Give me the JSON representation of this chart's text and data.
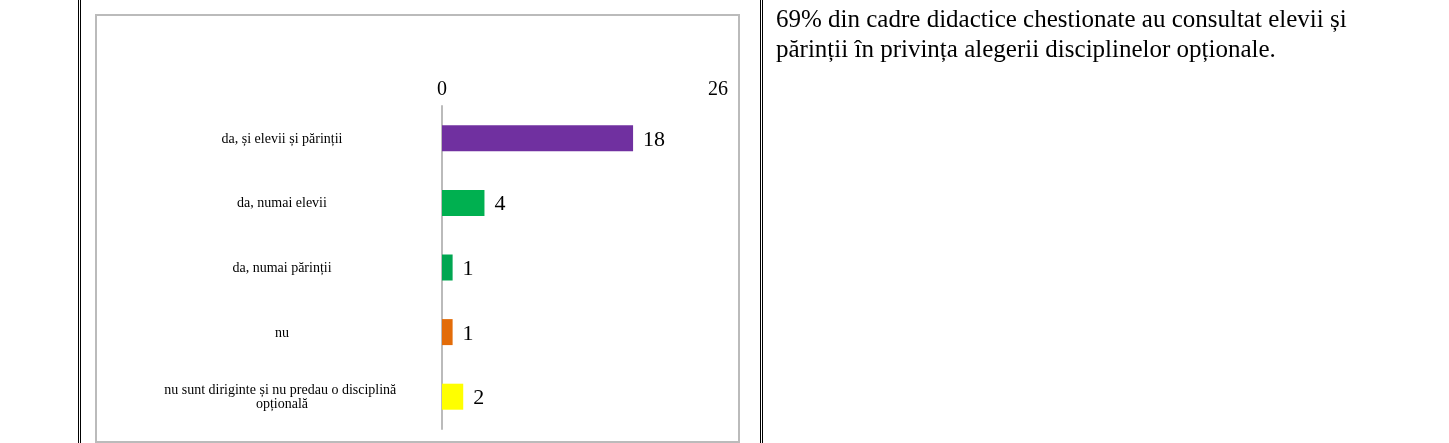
{
  "chart_data": {
    "type": "bar",
    "orientation": "horizontal",
    "categories": [
      "da, și elevii și părinții",
      "da, numai elevii",
      "da, numai părinții",
      "nu",
      "nu sunt diriginte și nu predau o disciplină opțională"
    ],
    "values": [
      18,
      4,
      1,
      1,
      2
    ],
    "colors": [
      "#7030a0",
      "#00b050",
      "#00a651",
      "#e36c09",
      "#ffff00"
    ],
    "xlim": [
      0,
      26
    ],
    "xticks": [
      0,
      26
    ],
    "grid": false,
    "data_labels": true,
    "annotations": [
      "69% din cadre didactice chestionate au consultat elevii și părinții în privința alegerii disciplinelor opționale."
    ]
  }
}
